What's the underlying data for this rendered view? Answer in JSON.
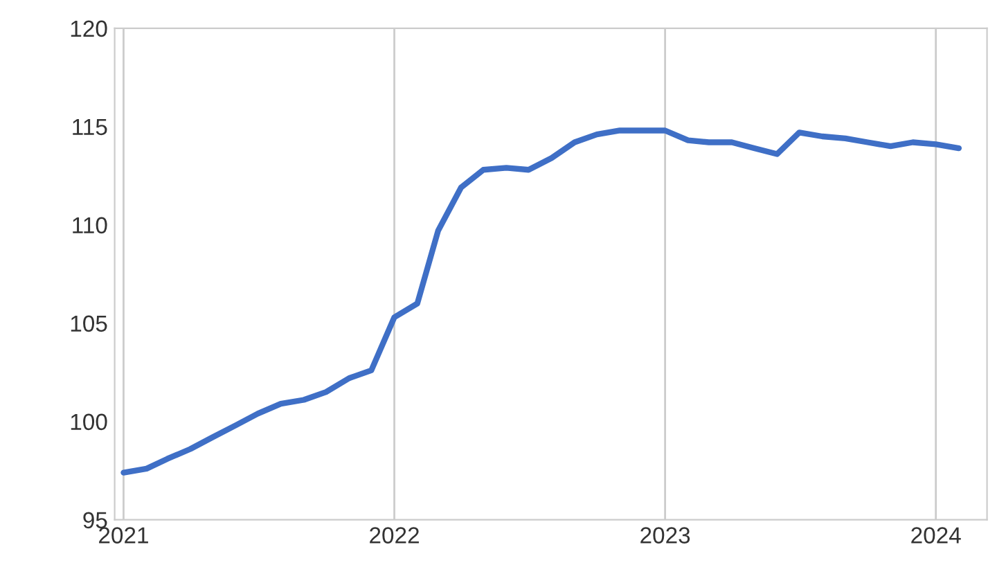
{
  "chart_data": {
    "type": "line",
    "x": [
      "2021-01",
      "2021-02",
      "2021-03",
      "2021-04",
      "2021-05",
      "2021-06",
      "2021-07",
      "2021-08",
      "2021-09",
      "2021-10",
      "2021-11",
      "2021-12",
      "2022-01",
      "2022-02",
      "2022-03",
      "2022-04",
      "2022-05",
      "2022-06",
      "2022-07",
      "2022-08",
      "2022-09",
      "2022-10",
      "2022-11",
      "2022-12",
      "2023-01",
      "2023-02",
      "2023-03",
      "2023-04",
      "2023-05",
      "2023-06",
      "2023-07",
      "2023-08",
      "2023-09",
      "2023-10",
      "2023-11",
      "2023-12",
      "2024-01",
      "2024-02"
    ],
    "series": [
      {
        "color": "#3f6fc6",
        "values": [
          97.4,
          97.6,
          98.1,
          98.6,
          99.2,
          99.8,
          100.4,
          100.9,
          101.1,
          101.5,
          102.2,
          102.6,
          105.3,
          106.0,
          109.7,
          111.9,
          112.8,
          112.9,
          112.8,
          113.4,
          114.2,
          114.6,
          114.8,
          114.8,
          114.8,
          114.3,
          114.2,
          114.2,
          113.9,
          113.6,
          114.7,
          114.5,
          114.4,
          114.2,
          114.0,
          114.2,
          114.1,
          113.9
        ]
      }
    ],
    "xlim": [
      "2020-12-20",
      "2024-03-10"
    ],
    "xticks": [
      {
        "value": "2021-01",
        "label": "2021"
      },
      {
        "value": "2022-01",
        "label": "2022"
      },
      {
        "value": "2023-01",
        "label": "2023"
      },
      {
        "value": "2024-01",
        "label": "2024"
      }
    ],
    "ylim": [
      95,
      120
    ],
    "yticks": [
      95,
      100,
      105,
      110,
      115,
      120
    ],
    "grid": "x",
    "legend": false,
    "marker": "none",
    "line_style": "solid"
  }
}
